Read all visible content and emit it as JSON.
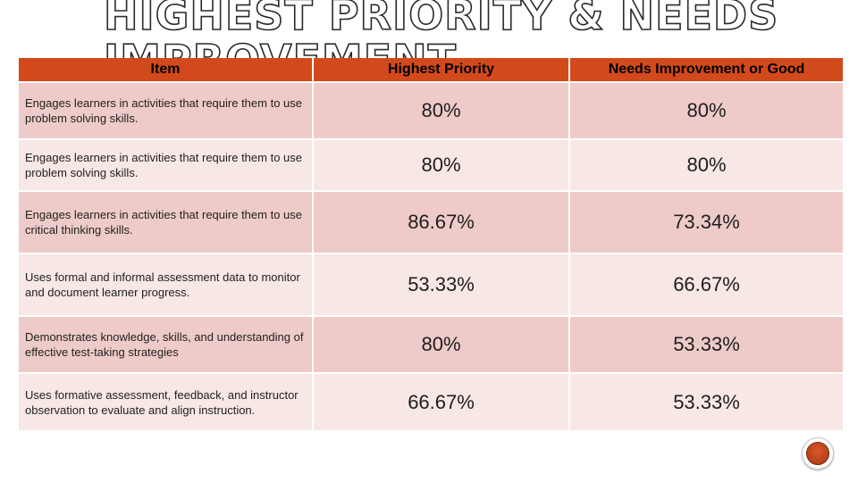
{
  "slide": {
    "title": "Highest Priority & Needs Improvement"
  },
  "table": {
    "headers": {
      "item": "Item",
      "highest_priority": "Highest Priority",
      "needs_improvement": "Needs Improvement or Good"
    },
    "rows": [
      {
        "item": "Engages learners in activities that require them to use problem solving skills.",
        "highest_priority": "80%",
        "needs_improvement": "80%"
      },
      {
        "item": "Engages learners in activities that require them to use problem solving skills.",
        "highest_priority": "80%",
        "needs_improvement": "80%"
      },
      {
        "item": "Engages learners in activities that require them to use critical thinking skills.",
        "highest_priority": "86.67%",
        "needs_improvement": "73.34%"
      },
      {
        "item": "Uses formal and informal assessment data to monitor and document learner progress.",
        "highest_priority": "53.33%",
        "needs_improvement": "66.67%"
      },
      {
        "item": "Demonstrates knowledge, skills, and understanding of effective test-taking strategies",
        "highest_priority": "80%",
        "needs_improvement": "53.33%"
      },
      {
        "item": "Uses formative assessment, feedback, and instructor observation to evaluate and align instruction.",
        "highest_priority": "66.67%",
        "needs_improvement": "53.33%"
      }
    ]
  },
  "colors": {
    "header": "#d24a1b",
    "row_odd": "#eecbc8",
    "row_even": "#f7e7e5"
  },
  "icons": {
    "home_button": "orange-circle-button-icon"
  }
}
